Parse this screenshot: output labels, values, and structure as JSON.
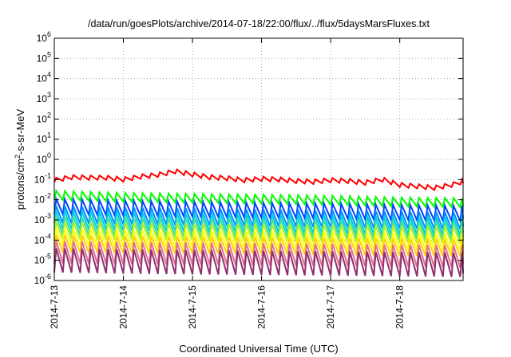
{
  "chart_data": {
    "type": "line",
    "title": "/data/run/goesPlots/archive/2014-07-18/22:00/flux/../flux/5daysMarsFluxes.txt",
    "xlabel": "Coordinated Universal Time (UTC)",
    "ylabel_parts": [
      "protons/cm",
      "2",
      "-s-sr-MeV"
    ],
    "y_scale": "log",
    "ylim": [
      1e-06,
      1000000.0
    ],
    "xlim": [
      "2014-07-13",
      "2014-07-18 22:00"
    ],
    "grid": true,
    "x_ticks": [
      {
        "label": "2014-7-13",
        "value": 0
      },
      {
        "label": "2014-7-14",
        "value": 1
      },
      {
        "label": "2014-7-15",
        "value": 2
      },
      {
        "label": "2014-7-16",
        "value": 3
      },
      {
        "label": "2014-7-17",
        "value": 4
      },
      {
        "label": "2014-7-18",
        "value": 5
      }
    ],
    "y_ticks": [
      {
        "base": "10",
        "exp": "-6",
        "value": -6
      },
      {
        "base": "10",
        "exp": "-5",
        "value": -5
      },
      {
        "base": "10",
        "exp": "-4",
        "value": -4
      },
      {
        "base": "10",
        "exp": "-3",
        "value": -3
      },
      {
        "base": "10",
        "exp": "-2",
        "value": -2
      },
      {
        "base": "10",
        "exp": "-1",
        "value": -1
      },
      {
        "base": "10",
        "exp": "0",
        "value": 0
      },
      {
        "base": "10",
        "exp": "1",
        "value": 1
      },
      {
        "base": "10",
        "exp": "2",
        "value": 2
      },
      {
        "base": "10",
        "exp": "3",
        "value": 3
      },
      {
        "base": "10",
        "exp": "4",
        "value": 4
      },
      {
        "base": "10",
        "exp": "5",
        "value": 5
      },
      {
        "base": "10",
        "exp": "6",
        "value": 6
      }
    ],
    "series": [
      {
        "color": "#ff0000",
        "period_days": 0.125,
        "drop_decades": 0.22,
        "values": [
          [
            0.0,
            0.12
          ],
          [
            0.25,
            0.17
          ],
          [
            0.5,
            0.16
          ],
          [
            0.75,
            0.16
          ],
          [
            1.0,
            0.13
          ],
          [
            1.25,
            0.18
          ],
          [
            1.5,
            0.22
          ],
          [
            1.75,
            0.33
          ],
          [
            2.0,
            0.23
          ],
          [
            2.25,
            0.17
          ],
          [
            2.5,
            0.15
          ],
          [
            2.75,
            0.12
          ],
          [
            3.0,
            0.14
          ],
          [
            3.25,
            0.13
          ],
          [
            3.5,
            0.11
          ],
          [
            3.75,
            0.1
          ],
          [
            4.0,
            0.12
          ],
          [
            4.25,
            0.11
          ],
          [
            4.5,
            0.09
          ],
          [
            4.75,
            0.13
          ],
          [
            5.0,
            0.07
          ],
          [
            5.25,
            0.06
          ],
          [
            5.5,
            0.05
          ],
          [
            5.75,
            0.07
          ],
          [
            5.9,
            0.1
          ]
        ]
      },
      {
        "color": "#00ff00",
        "period_days": 0.125,
        "drop_decades": 0.45,
        "values": [
          [
            0.0,
            0.028
          ],
          [
            1.0,
            0.022
          ],
          [
            2.0,
            0.02
          ],
          [
            3.0,
            0.018
          ],
          [
            4.0,
            0.016
          ],
          [
            5.0,
            0.013
          ],
          [
            5.9,
            0.012
          ]
        ]
      },
      {
        "color": "#0044ff",
        "period_days": 0.125,
        "drop_decades": 0.75,
        "values": [
          [
            0.0,
            0.011
          ],
          [
            1.0,
            0.009
          ],
          [
            2.0,
            0.008
          ],
          [
            3.0,
            0.007
          ],
          [
            4.0,
            0.0065
          ],
          [
            5.0,
            0.0055
          ],
          [
            5.9,
            0.005
          ]
        ]
      },
      {
        "color": "#0090ff",
        "period_days": 0.125,
        "drop_decades": 0.85,
        "values": [
          [
            0.0,
            0.005
          ],
          [
            1.0,
            0.0042
          ],
          [
            2.0,
            0.0038
          ],
          [
            3.0,
            0.0033
          ],
          [
            4.0,
            0.003
          ],
          [
            5.0,
            0.0026
          ],
          [
            5.9,
            0.0024
          ]
        ]
      },
      {
        "color": "#00d0e0",
        "period_days": 0.125,
        "drop_decades": 0.9,
        "values": [
          [
            0.0,
            0.0028
          ],
          [
            1.0,
            0.0024
          ],
          [
            2.0,
            0.0021
          ],
          [
            3.0,
            0.0019
          ],
          [
            4.0,
            0.0017
          ],
          [
            5.0,
            0.0015
          ],
          [
            5.9,
            0.0014
          ]
        ]
      },
      {
        "color": "#40e0a0",
        "period_days": 0.125,
        "drop_decades": 0.9,
        "values": [
          [
            0.0,
            0.0015
          ],
          [
            1.0,
            0.0013
          ],
          [
            2.0,
            0.0012
          ],
          [
            3.0,
            0.0011
          ],
          [
            4.0,
            0.001
          ],
          [
            5.0,
            0.0009
          ],
          [
            5.9,
            0.00085
          ]
        ]
      },
      {
        "color": "#b0f020",
        "period_days": 0.125,
        "drop_decades": 0.85,
        "values": [
          [
            0.0,
            0.0008
          ],
          [
            1.0,
            0.0007
          ],
          [
            2.0,
            0.00065
          ],
          [
            3.0,
            0.0006
          ],
          [
            4.0,
            0.00055
          ],
          [
            5.0,
            0.0005
          ],
          [
            5.9,
            0.00048
          ]
        ]
      },
      {
        "color": "#ffff00",
        "period_days": 0.125,
        "drop_decades": 0.8,
        "values": [
          [
            0.0,
            0.00035
          ],
          [
            1.0,
            0.0003
          ],
          [
            2.0,
            0.00028
          ],
          [
            3.0,
            0.00026
          ],
          [
            4.0,
            0.00024
          ],
          [
            5.0,
            0.00022
          ],
          [
            5.9,
            0.0002
          ]
        ]
      },
      {
        "color": "#ffd000",
        "period_days": 0.125,
        "drop_decades": 0.85,
        "values": [
          [
            0.0,
            0.00018
          ],
          [
            1.0,
            0.00016
          ],
          [
            2.0,
            0.00015
          ],
          [
            3.0,
            0.00014
          ],
          [
            4.0,
            0.00013
          ],
          [
            5.0,
            0.00012
          ],
          [
            5.9,
            0.00011
          ]
        ]
      },
      {
        "color": "#e07090",
        "period_days": 0.125,
        "drop_decades": 1.1,
        "values": [
          [
            0.0,
            9e-05
          ],
          [
            1.0,
            8e-05
          ],
          [
            2.0,
            7.5e-05
          ],
          [
            3.0,
            7e-05
          ],
          [
            4.0,
            6.5e-05
          ],
          [
            5.0,
            6e-05
          ],
          [
            5.9,
            5.5e-05
          ]
        ]
      },
      {
        "color": "#903070",
        "period_days": 0.125,
        "drop_decades": 1.2,
        "values": [
          [
            0.0,
            4e-05
          ],
          [
            1.0,
            3.5e-05
          ],
          [
            2.0,
            3.2e-05
          ],
          [
            3.0,
            3e-05
          ],
          [
            4.0,
            2.8e-05
          ],
          [
            5.0,
            2.6e-05
          ],
          [
            5.9,
            2.4e-05
          ]
        ]
      }
    ]
  }
}
